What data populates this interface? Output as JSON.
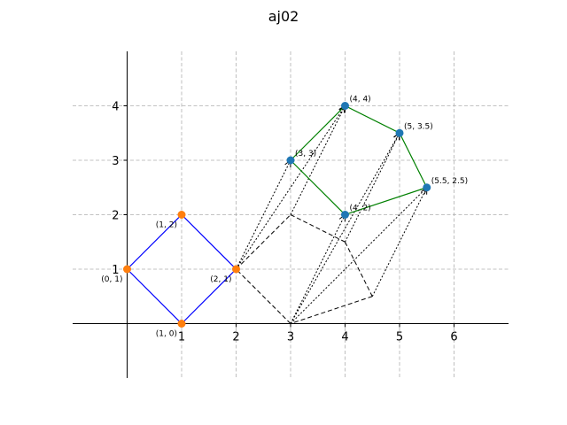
{
  "chart_data": {
    "type": "scatter",
    "title": "aj02",
    "xlabel": "",
    "ylabel": "",
    "xlim": [
      -1,
      7
    ],
    "ylim": [
      -1,
      5
    ],
    "xticks": [
      1,
      2,
      3,
      4,
      5,
      6
    ],
    "yticks": [
      1,
      2,
      3,
      4
    ],
    "grid": true,
    "colors": {
      "polygon_a": "#0000ff",
      "polygon_b": "#008000",
      "points_a": "#ff7f0e",
      "points_b": "#1f77b4",
      "arrows": "#000000",
      "grid": "#b0b0b0"
    },
    "series": [
      {
        "name": "",
        "color": "#0000ff",
        "marker_color": "#ff7f0e",
        "closed": true,
        "points": [
          {
            "x": 1,
            "y": 0,
            "label": "(1, 0)",
            "label_pos": "below-left"
          },
          {
            "x": 2,
            "y": 1,
            "label": "(2, 1)",
            "label_pos": "below-left"
          },
          {
            "x": 1,
            "y": 2,
            "label": "(1, 2)",
            "label_pos": "below-left"
          },
          {
            "x": 0,
            "y": 1,
            "label": "(0, 1)",
            "label_pos": "below-left"
          }
        ]
      },
      {
        "name": "",
        "color": "#008000",
        "marker_color": "#1f77b4",
        "closed": true,
        "points": [
          {
            "x": 3,
            "y": 3,
            "label": "(3, 3)",
            "label_pos": "above-right"
          },
          {
            "x": 4,
            "y": 4,
            "label": "(4, 4)",
            "label_pos": "above-right"
          },
          {
            "x": 5,
            "y": 3.5,
            "label": "(5, 3.5)",
            "label_pos": "above-right"
          },
          {
            "x": 5.5,
            "y": 2.5,
            "label": "(5.5, 2.5)",
            "label_pos": "above-right"
          },
          {
            "x": 4,
            "y": 2,
            "label": "(4, 2)",
            "label_pos": "above-right"
          }
        ]
      }
    ],
    "dotted_arrows": [
      {
        "from": [
          2,
          1
        ],
        "to": [
          3,
          3
        ]
      },
      {
        "from": [
          2,
          1
        ],
        "to": [
          4,
          4
        ]
      },
      {
        "from": [
          3,
          0
        ],
        "to": [
          5,
          3.5
        ]
      },
      {
        "from": [
          3,
          0
        ],
        "to": [
          5.5,
          2.5
        ]
      },
      {
        "from": [
          3,
          2
        ],
        "to": [
          4,
          4
        ]
      },
      {
        "from": [
          3,
          0
        ],
        "to": [
          4,
          2
        ]
      },
      {
        "from": [
          4,
          1.5
        ],
        "to": [
          5,
          3.5
        ]
      },
      {
        "from": [
          4.5,
          0.5
        ],
        "to": [
          5.5,
          2.5
        ]
      }
    ],
    "dashed_segments": [
      {
        "from": [
          2,
          1
        ],
        "to": [
          3,
          2
        ]
      },
      {
        "from": [
          3,
          2
        ],
        "to": [
          4,
          1.5
        ]
      },
      {
        "from": [
          4,
          1.5
        ],
        "to": [
          4.5,
          0.5
        ]
      },
      {
        "from": [
          4.5,
          0.5
        ],
        "to": [
          3,
          0
        ]
      },
      {
        "from": [
          3,
          0
        ],
        "to": [
          2,
          1
        ]
      }
    ]
  }
}
